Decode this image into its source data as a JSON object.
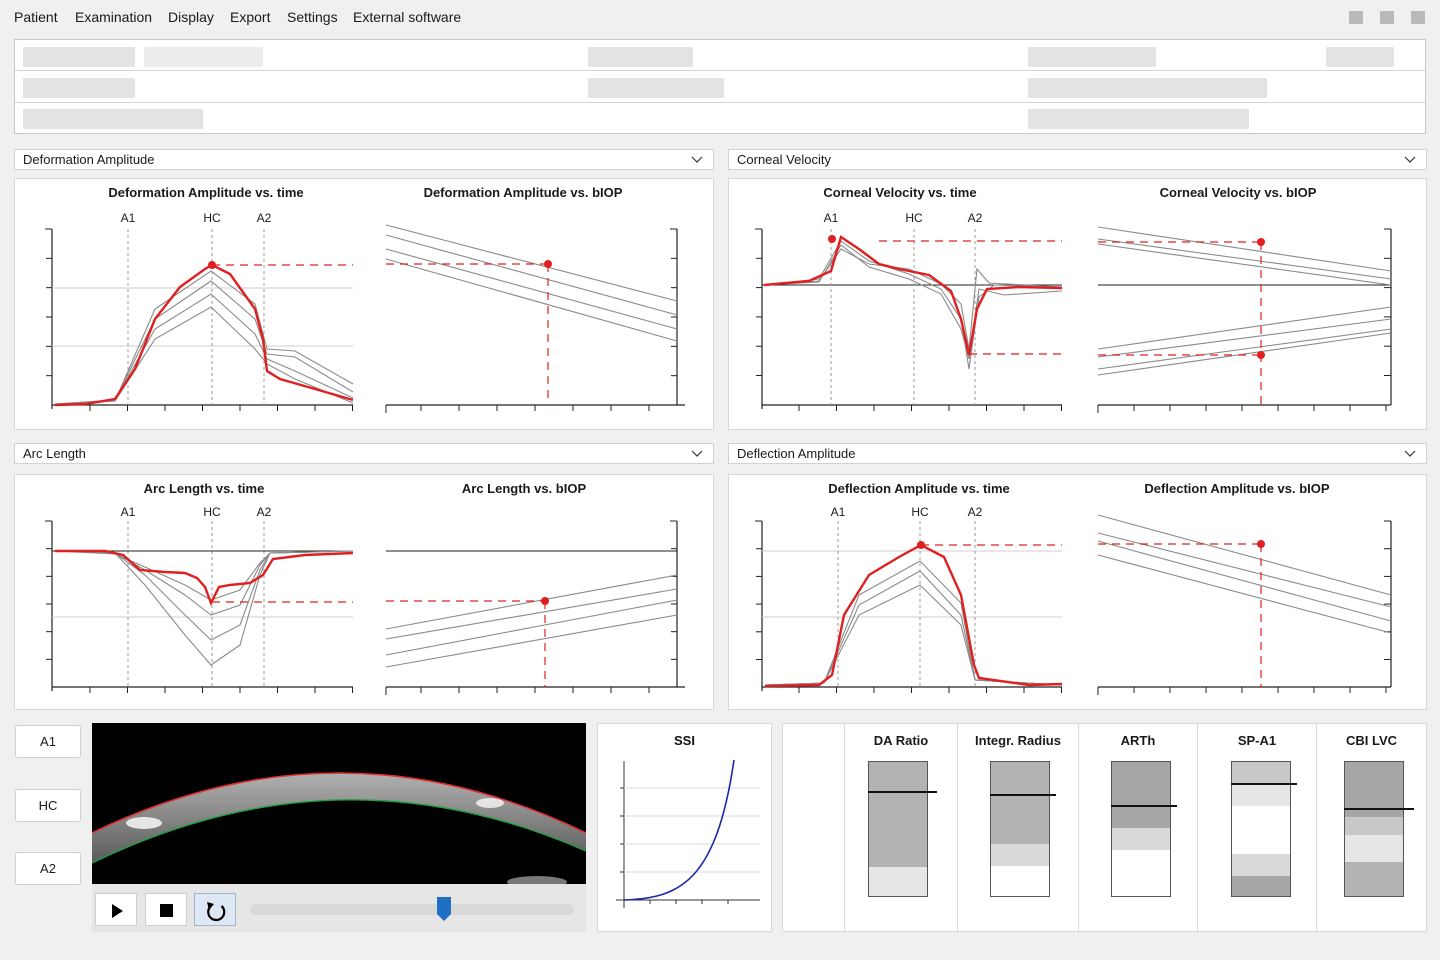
{
  "menu": [
    "Patient",
    "Examination",
    "Display",
    "Export",
    "Settings",
    "External software"
  ],
  "sections": {
    "deformation": {
      "header": "Deformation Amplitude",
      "time_title": "Deformation Amplitude vs. time",
      "biop_title": "Deformation Amplitude vs. bIOP"
    },
    "velocity": {
      "header": "Corneal Velocity",
      "time_title": "Corneal Velocity vs. time",
      "biop_title": "Corneal Velocity vs. bIOP"
    },
    "arc": {
      "header": "Arc Length",
      "time_title": "Arc Length vs. time",
      "biop_title": "Arc Length vs. bIOP"
    },
    "deflection": {
      "header": "Deflection Amplitude",
      "time_title": "Deflection Amplitude vs. time",
      "biop_title": "Deflection Amplitude vs. bIOP"
    }
  },
  "markers": [
    "A1",
    "HC",
    "A2"
  ],
  "buttons": {
    "a1": "A1",
    "hc": "HC",
    "a2": "A2"
  },
  "player": {
    "position": 0.6
  },
  "ssi": {
    "title": "SSI"
  },
  "metrics": [
    {
      "label": "DA Ratio"
    },
    {
      "label": "Integr. Radius"
    },
    {
      "label": "ARTh"
    },
    {
      "label": "SP-A1"
    },
    {
      "label": "CBI LVC"
    }
  ],
  "colors": {
    "patient_curve": "#e02020",
    "normative_curves": "#8a8a8a",
    "ssi_curve": "#1a27a8",
    "slider_thumb": "#1f6fc5",
    "active_button": "#dde8f4"
  },
  "chart_data": [
    {
      "type": "line",
      "title": "Deformation Amplitude vs. time",
      "markers": [
        "A1",
        "HC",
        "A2"
      ]
    },
    {
      "type": "line",
      "title": "Deformation Amplitude vs. bIOP"
    },
    {
      "type": "line",
      "title": "Corneal Velocity vs. time",
      "markers": [
        "A1",
        "HC",
        "A2"
      ]
    },
    {
      "type": "line",
      "title": "Corneal Velocity vs. bIOP"
    },
    {
      "type": "line",
      "title": "Arc Length vs. time",
      "markers": [
        "A1",
        "HC",
        "A2"
      ]
    },
    {
      "type": "line",
      "title": "Arc Length vs. bIOP"
    },
    {
      "type": "line",
      "title": "Deflection Amplitude vs. time",
      "markers": [
        "A1",
        "HC",
        "A2"
      ]
    },
    {
      "type": "line",
      "title": "Deflection Amplitude vs. bIOP"
    },
    {
      "type": "line",
      "title": "SSI"
    }
  ]
}
